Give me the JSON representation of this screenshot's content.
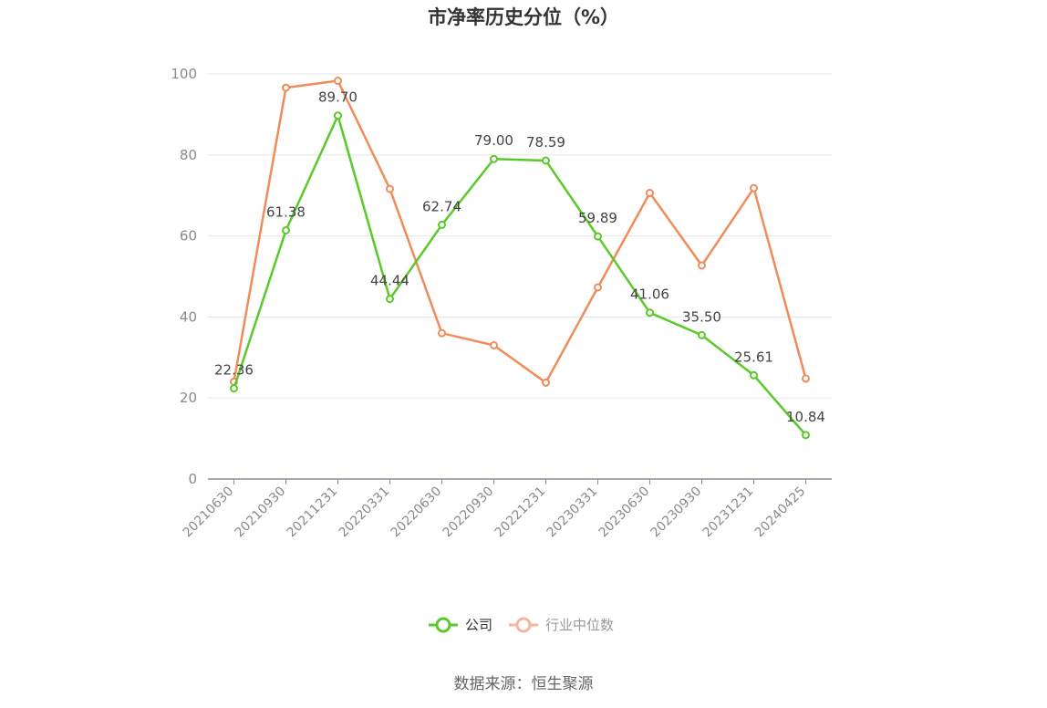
{
  "chart_data": {
    "type": "line",
    "title": "市净率历史分位（%）",
    "categories": [
      "20210630",
      "20210930",
      "20211231",
      "20220331",
      "20220630",
      "20220930",
      "20221231",
      "20230331",
      "20230630",
      "20230930",
      "20231231",
      "20240425"
    ],
    "ylim": [
      0,
      100
    ],
    "yticks": [
      0,
      20,
      40,
      60,
      80,
      100
    ],
    "grid": true,
    "legend_position": "bottom",
    "series": [
      {
        "name": "公司",
        "color": "#5ac92a",
        "values": [
          22.36,
          61.38,
          89.7,
          44.44,
          62.74,
          79.0,
          78.59,
          59.89,
          41.06,
          35.5,
          25.61,
          10.84
        ],
        "labels": [
          "22.36",
          "61.38",
          "89.70",
          "44.44",
          "62.74",
          "79.00",
          "78.59",
          "59.89",
          "41.06",
          "35.50",
          "25.61",
          "10.84"
        ]
      },
      {
        "name": "行业中位数",
        "color": "#f08c5a",
        "values": [
          24.0,
          96.6,
          98.3,
          71.6,
          36.0,
          33.0,
          23.8,
          47.3,
          70.6,
          52.7,
          71.8,
          24.8
        ]
      }
    ]
  },
  "source": "数据来源：恒生聚源"
}
